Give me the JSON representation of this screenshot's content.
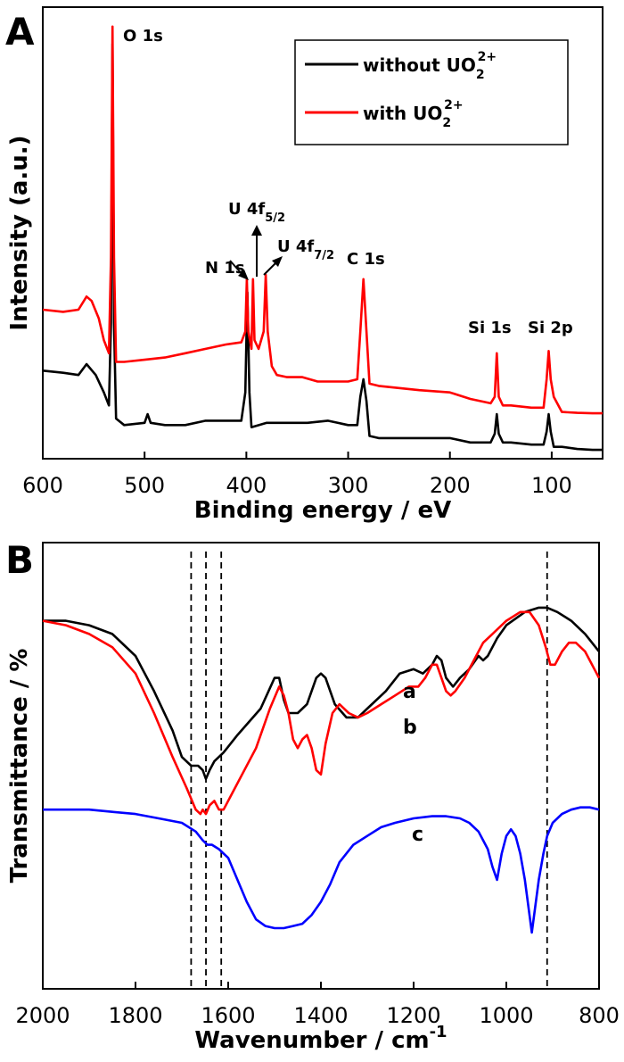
{
  "figure": {
    "panel_a_letter": "A",
    "panel_b_letter": "B"
  },
  "chart_data": [
    {
      "type": "line",
      "panel": "A",
      "title": "",
      "xlabel": "Binding energy / eV",
      "ylabel": "Intensity (a.u.)",
      "xlim": [
        600,
        50
      ],
      "xticks": [
        600,
        500,
        400,
        300,
        200,
        100
      ],
      "x_reversed": true,
      "y_units": "arbitrary",
      "ylim": [
        0,
        100
      ],
      "legend_position": "top-right",
      "annotations": [
        {
          "text": "O 1s",
          "x": 531
        },
        {
          "text": "N 1s",
          "x": 399
        },
        {
          "text": "U 4f",
          "sub": "5/2",
          "x": 392
        },
        {
          "text": "U 4f",
          "sub": "7/2",
          "x": 381
        },
        {
          "text": "C 1s",
          "x": 285
        },
        {
          "text": "Si 1s",
          "x": 154
        },
        {
          "text": "Si 2p",
          "x": 103
        }
      ],
      "series": [
        {
          "name": "without UO",
          "name_sub": "2",
          "name_sup": "2+",
          "color": "#000000",
          "x": [
            600,
            580,
            565,
            557,
            548,
            540,
            535,
            533,
            531.5,
            530,
            528,
            520,
            500,
            497,
            494,
            480,
            460,
            440,
            420,
            405,
            401,
            399,
            397,
            395,
            380,
            360,
            340,
            320,
            300,
            291,
            288,
            285,
            282,
            279,
            270,
            250,
            230,
            200,
            180,
            160,
            156,
            154,
            152,
            148,
            140,
            120,
            108,
            105,
            103,
            101,
            98,
            90,
            75,
            60,
            50
          ],
          "y": [
            19,
            18.5,
            18,
            20.5,
            18,
            14,
            11,
            30,
            94,
            30,
            8,
            6.5,
            7,
            9,
            7,
            6.5,
            6.5,
            7.5,
            7.5,
            7.5,
            14,
            37,
            14,
            6,
            7,
            7,
            7,
            7.5,
            6.5,
            6.5,
            13,
            17,
            12,
            4,
            3.5,
            3.5,
            3.5,
            3.5,
            2.5,
            2.5,
            4.5,
            9,
            4.5,
            2.5,
            2.5,
            2,
            2,
            5,
            9,
            5,
            1.5,
            1.5,
            1,
            0.8,
            0.8
          ]
        },
        {
          "name": "with UO",
          "name_sub": "2",
          "name_sup": "2+",
          "color": "#ff0000",
          "x": [
            600,
            580,
            565,
            557,
            552,
            545,
            540,
            535,
            533,
            531.5,
            530,
            528,
            520,
            500,
            480,
            460,
            440,
            420,
            405,
            401,
            399.5,
            398,
            395,
            393.5,
            392,
            388,
            383,
            381,
            379,
            375,
            370,
            360,
            345,
            330,
            320,
            300,
            291,
            288,
            285,
            282,
            279,
            270,
            250,
            230,
            200,
            180,
            160,
            156,
            154,
            152,
            148,
            140,
            120,
            108,
            105,
            103,
            101,
            98,
            90,
            75,
            60,
            50
          ],
          "y": [
            33,
            32.5,
            33,
            36,
            35,
            31,
            26,
            23,
            45,
            98,
            45,
            21,
            21,
            21.5,
            22,
            23,
            24,
            25,
            25.5,
            28,
            40,
            28,
            24,
            40,
            26,
            24,
            28,
            41,
            28,
            20,
            18,
            17.5,
            17.5,
            16.5,
            16.5,
            16.5,
            17,
            28,
            40,
            28,
            16,
            15.5,
            15,
            14.5,
            14,
            12.5,
            11.5,
            13,
            23,
            13,
            11,
            11,
            10.5,
            10.5,
            17,
            23.5,
            17,
            13,
            9.5,
            9.3,
            9.2,
            9.2
          ]
        }
      ]
    },
    {
      "type": "line",
      "panel": "B",
      "title": "",
      "xlabel": "Wavenumber / cm",
      "xlabel_sup": "-1",
      "ylabel": "Transmittance / %",
      "xlim": [
        2000,
        800
      ],
      "xticks": [
        2000,
        1800,
        1600,
        1400,
        1200,
        1000,
        800
      ],
      "x_reversed": true,
      "y_units": "arbitrary",
      "ylim": [
        0,
        100
      ],
      "reference_lines_x": [
        1680,
        1648,
        1615,
        912
      ],
      "series": [
        {
          "name": "a",
          "color": "#000000",
          "x": [
            2000,
            1950,
            1900,
            1850,
            1800,
            1760,
            1720,
            1700,
            1680,
            1665,
            1655,
            1648,
            1640,
            1630,
            1610,
            1580,
            1530,
            1500,
            1490,
            1480,
            1470,
            1450,
            1430,
            1410,
            1400,
            1390,
            1370,
            1345,
            1320,
            1300,
            1260,
            1230,
            1200,
            1180,
            1160,
            1150,
            1140,
            1130,
            1115,
            1100,
            1080,
            1060,
            1050,
            1040,
            1020,
            1000,
            960,
            930,
            912,
            890,
            860,
            830,
            800
          ],
          "y": [
            83,
            83,
            82,
            80,
            75,
            67,
            58,
            52,
            50,
            50,
            49,
            47,
            49,
            51,
            53,
            57,
            63,
            70,
            70,
            65,
            62,
            62,
            64,
            70,
            71,
            70,
            64,
            61,
            61,
            63,
            67,
            71,
            72,
            71,
            73,
            75,
            74,
            70,
            68,
            70,
            72,
            75,
            74,
            75,
            79,
            82,
            85,
            86,
            86,
            85,
            83,
            80,
            76
          ]
        },
        {
          "name": "b",
          "color": "#ff0000",
          "x": [
            2000,
            1950,
            1900,
            1850,
            1800,
            1760,
            1720,
            1690,
            1670,
            1660,
            1655,
            1648,
            1640,
            1630,
            1620,
            1610,
            1590,
            1570,
            1540,
            1510,
            1490,
            1480,
            1470,
            1460,
            1450,
            1440,
            1430,
            1420,
            1410,
            1400,
            1390,
            1375,
            1360,
            1340,
            1320,
            1300,
            1270,
            1240,
            1210,
            1190,
            1175,
            1160,
            1150,
            1140,
            1130,
            1120,
            1110,
            1090,
            1070,
            1050,
            1030,
            1000,
            970,
            950,
            930,
            915,
            905,
            895,
            880,
            865,
            850,
            830,
            810,
            800
          ],
          "y": [
            83,
            82,
            80,
            77,
            71,
            62,
            52,
            45,
            40,
            39,
            40,
            39,
            41,
            42,
            40,
            40,
            44,
            48,
            54,
            63,
            68,
            66,
            62,
            56,
            54,
            56,
            57,
            54,
            49,
            48,
            55,
            62,
            64,
            62,
            61,
            62,
            64,
            66,
            68,
            68,
            70,
            73,
            73,
            70,
            67,
            66,
            67,
            70,
            74,
            78,
            80,
            83,
            85,
            85,
            82,
            77,
            73,
            73,
            76,
            78,
            78,
            76,
            72,
            70
          ]
        },
        {
          "name": "c",
          "color": "#0000ff",
          "x": [
            2000,
            1950,
            1900,
            1850,
            1800,
            1750,
            1700,
            1670,
            1655,
            1645,
            1635,
            1620,
            1600,
            1580,
            1560,
            1540,
            1520,
            1500,
            1480,
            1460,
            1440,
            1420,
            1400,
            1380,
            1360,
            1330,
            1300,
            1270,
            1240,
            1200,
            1160,
            1130,
            1100,
            1080,
            1060,
            1050,
            1040,
            1030,
            1020,
            1010,
            1000,
            990,
            980,
            970,
            960,
            950,
            945,
            940,
            930,
            920,
            912,
            900,
            880,
            860,
            840,
            820,
            800
          ],
          "y": [
            40,
            40,
            40,
            39.5,
            39,
            38,
            37,
            35,
            33,
            32,
            32,
            31,
            29,
            24,
            19,
            15,
            13.5,
            13,
            13,
            13.5,
            14,
            16,
            19,
            23,
            28,
            32,
            34,
            36,
            37,
            38,
            38.5,
            38.5,
            38,
            37,
            35,
            33,
            31,
            27,
            24,
            30,
            34,
            35.5,
            34,
            30,
            24,
            16,
            12,
            16,
            24,
            30,
            34,
            37,
            39,
            40,
            40.5,
            40.5,
            40
          ]
        }
      ]
    }
  ]
}
